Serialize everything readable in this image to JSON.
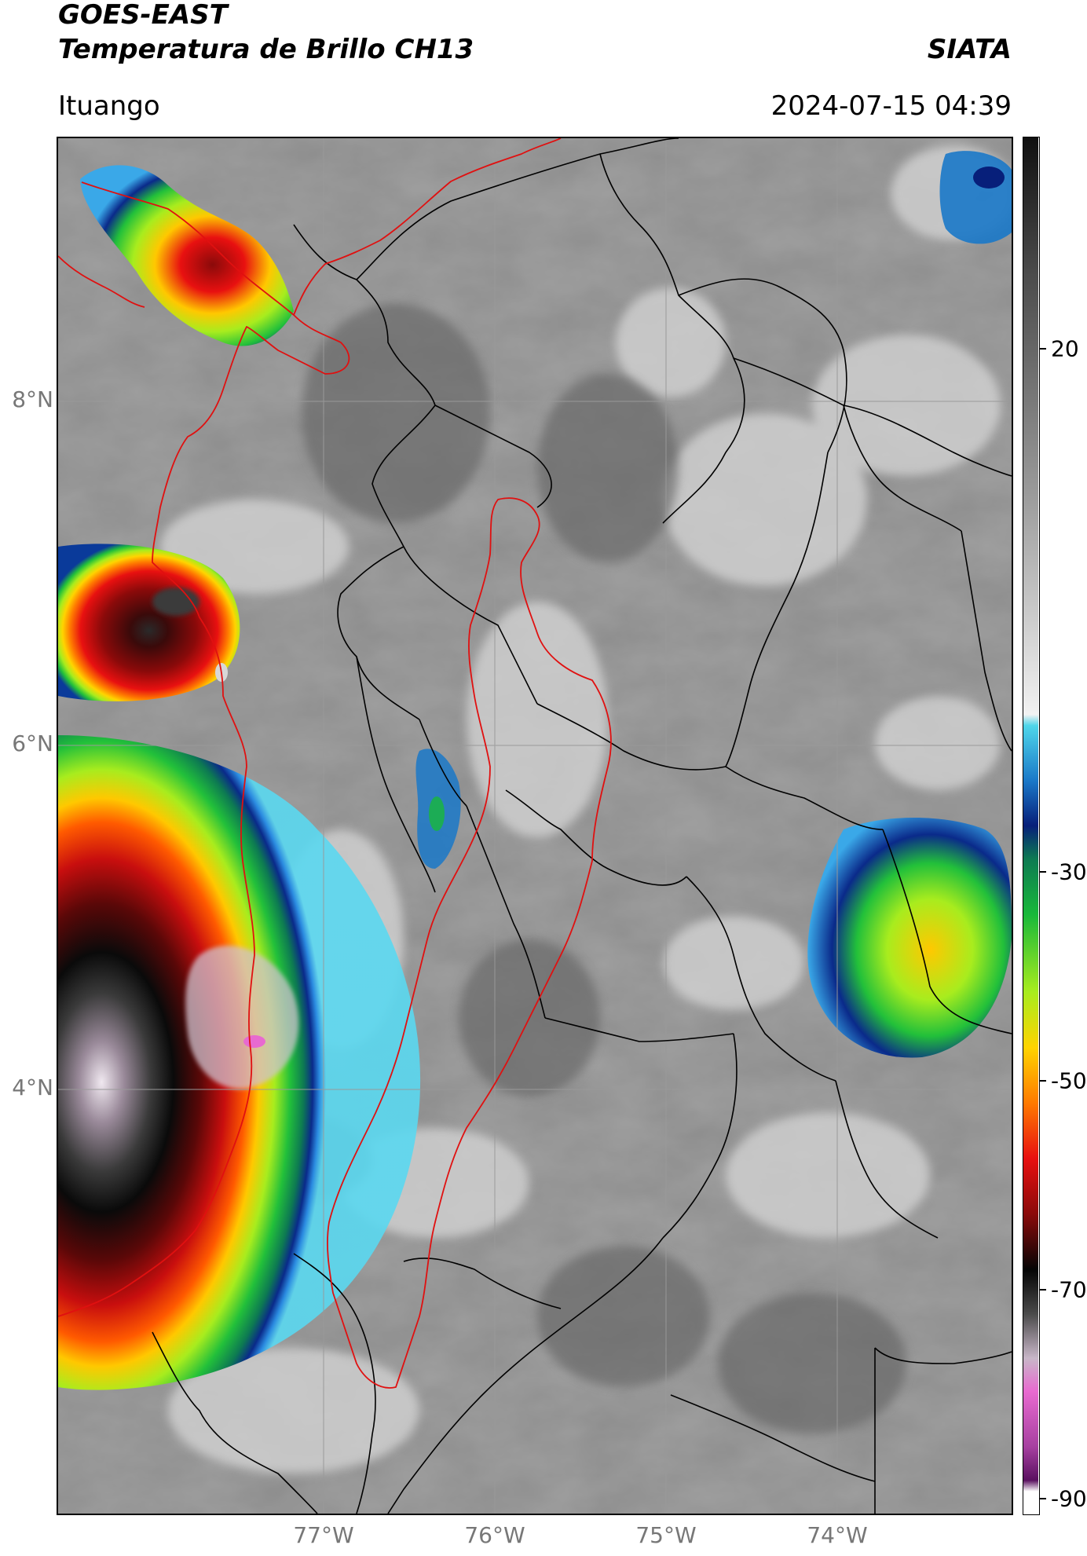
{
  "header": {
    "satellite": "GOES-EAST",
    "product": "Temperatura de Brillo CH13",
    "brand": "SIATA",
    "region": "Ituango",
    "timestamp": "2024-07-15 04:39"
  },
  "axes": {
    "lat_labels": [
      "8°N",
      "6°N",
      "4°N"
    ],
    "lon_labels": [
      "77°W",
      "76°W",
      "75°W",
      "74°W"
    ]
  },
  "colorbar": {
    "ticks": [
      "20",
      "-30",
      "-50",
      "-70",
      "-90"
    ],
    "range": [
      -92,
      32
    ],
    "stops": [
      {
        "v": 32,
        "c": "#101010"
      },
      {
        "v": 20,
        "c": "#4a4a4a"
      },
      {
        "v": 0,
        "c": "#9a9a9a"
      },
      {
        "v": -20,
        "c": "#f2f2f2"
      },
      {
        "v": -21,
        "c": "#4fd6ea"
      },
      {
        "v": -26,
        "c": "#1a78c8"
      },
      {
        "v": -30,
        "c": "#071f7a"
      },
      {
        "v": -33,
        "c": "#0d7a52"
      },
      {
        "v": -38,
        "c": "#18b83a"
      },
      {
        "v": -45,
        "c": "#a8ec1e"
      },
      {
        "v": -50,
        "c": "#ffd400"
      },
      {
        "v": -55,
        "c": "#ff7a00"
      },
      {
        "v": -60,
        "c": "#e81010"
      },
      {
        "v": -65,
        "c": "#8a0a0a"
      },
      {
        "v": -70,
        "c": "#050505"
      },
      {
        "v": -74,
        "c": "#4a4a4a"
      },
      {
        "v": -78,
        "c": "#c8b6c8"
      },
      {
        "v": -81,
        "c": "#e86ad0"
      },
      {
        "v": -86,
        "c": "#a640a0"
      },
      {
        "v": -89,
        "c": "#5a1060"
      },
      {
        "v": -90,
        "c": "#ffffff"
      }
    ]
  },
  "colors": {
    "borders": "#000000",
    "ituango_region": "#e01010"
  }
}
